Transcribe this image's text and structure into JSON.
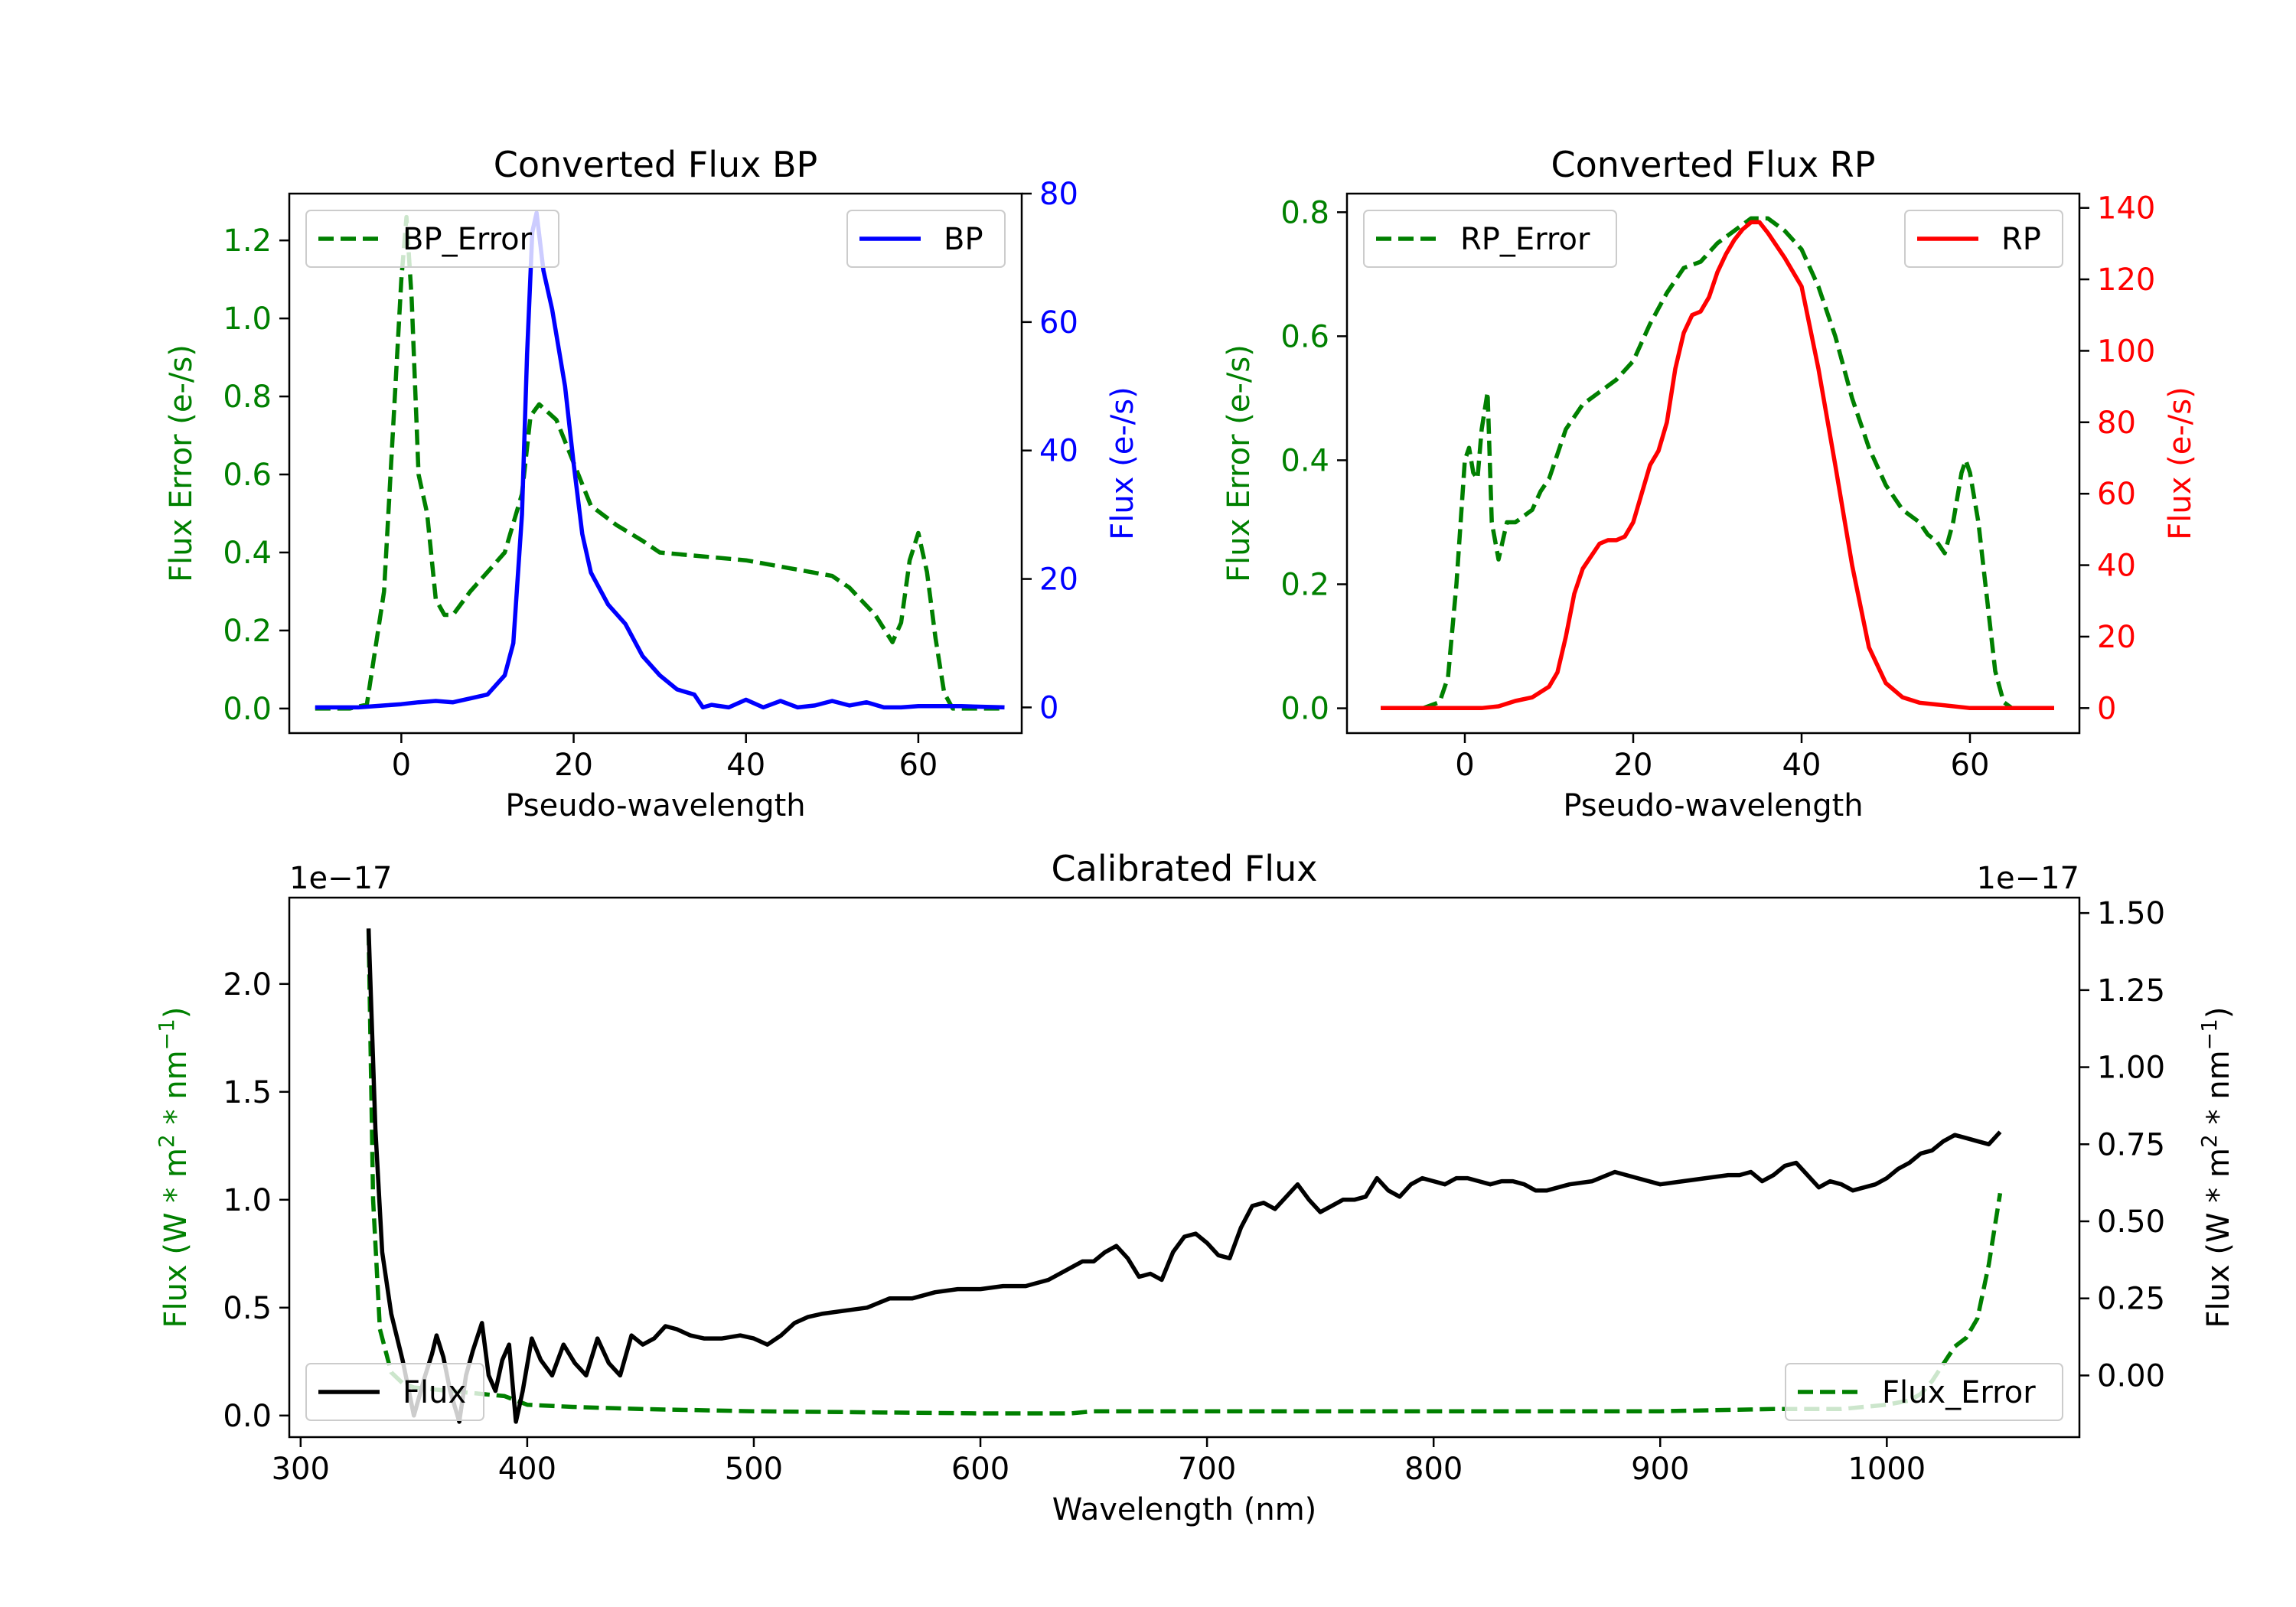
{
  "colors": {
    "green": "#008000",
    "blue": "#0000ff",
    "red": "#ff0000",
    "black": "#000000"
  },
  "chart_data": [
    {
      "type": "line",
      "title": "Converted Flux BP",
      "xlabel": "Pseudo-wavelength",
      "xlim": [
        -13,
        72
      ],
      "x_ticks": [
        0,
        20,
        40,
        60
      ],
      "x_tick_labels": [
        "0",
        "20",
        "40",
        "60"
      ],
      "left_axis": {
        "label": "Flux Error (e-/s)",
        "ylim": [
          -0.063,
          1.32
        ],
        "ticks": [
          0.0,
          0.2,
          0.4,
          0.6,
          0.8,
          1.0,
          1.2
        ],
        "tick_labels": [
          "0.0",
          "0.2",
          "0.4",
          "0.6",
          "0.8",
          "1.0",
          "1.2"
        ]
      },
      "right_axis": {
        "label": "Flux (e-/s)",
        "ylim": [
          -4,
          80
        ],
        "ticks": [
          0,
          20,
          40,
          60,
          80
        ],
        "tick_labels": [
          "0",
          "20",
          "40",
          "60",
          "80"
        ]
      },
      "series": [
        {
          "name": "BP_Error",
          "axis": "left",
          "style": "dashed",
          "color": "#008000",
          "x": [
            -10,
            -6,
            -4,
            -2,
            -1,
            0,
            0.6,
            1.2,
            2,
            3,
            4,
            5,
            6,
            8,
            10,
            12,
            14,
            15,
            16,
            18,
            20,
            22,
            25,
            28,
            30,
            35,
            40,
            45,
            50,
            52,
            55,
            57,
            58,
            59,
            60,
            61,
            62,
            63,
            64,
            66,
            70
          ],
          "values": [
            0.0,
            0.0,
            0.01,
            0.3,
            0.7,
            1.1,
            1.26,
            1.05,
            0.6,
            0.5,
            0.28,
            0.24,
            0.24,
            0.3,
            0.35,
            0.4,
            0.55,
            0.75,
            0.78,
            0.74,
            0.63,
            0.52,
            0.47,
            0.43,
            0.4,
            0.39,
            0.38,
            0.36,
            0.34,
            0.31,
            0.24,
            0.17,
            0.22,
            0.38,
            0.45,
            0.35,
            0.18,
            0.04,
            0.0,
            0.0,
            0.0
          ]
        },
        {
          "name": "BP",
          "axis": "right",
          "style": "solid",
          "color": "#0000ff",
          "x": [
            -10,
            -5,
            -2,
            0,
            2,
            4,
            6,
            8,
            10,
            12,
            13,
            14,
            14.6,
            15.2,
            15.7,
            16.5,
            17.5,
            19,
            20,
            21,
            22,
            24,
            26,
            28,
            30,
            32,
            34,
            35,
            36,
            38,
            40,
            42,
            44,
            46,
            48,
            50,
            52,
            54,
            56,
            58,
            60,
            65,
            70
          ],
          "values": [
            0,
            0,
            0.3,
            0.5,
            0.8,
            1.0,
            0.8,
            1.4,
            2,
            5,
            10,
            30,
            55,
            74,
            77,
            68,
            62,
            50,
            38,
            27,
            21,
            16,
            13,
            8,
            5,
            2.8,
            2.0,
            0,
            0.4,
            0,
            1.2,
            0,
            1.0,
            0,
            0.3,
            1,
            0.3,
            0.8,
            0,
            0,
            0.2,
            0.2,
            0
          ]
        }
      ],
      "legends": [
        {
          "entry": "BP_Error",
          "placement": "upper-left"
        },
        {
          "entry": "BP",
          "placement": "upper-right"
        }
      ]
    },
    {
      "type": "line",
      "title": "Converted Flux RP",
      "xlabel": "Pseudo-wavelength",
      "xlim": [
        -14,
        73
      ],
      "x_ticks": [
        0,
        20,
        40,
        60
      ],
      "x_tick_labels": [
        "0",
        "20",
        "40",
        "60"
      ],
      "left_axis": {
        "label": "Flux Error (e-/s)",
        "ylim": [
          -0.04,
          0.83
        ],
        "ticks": [
          0.0,
          0.2,
          0.4,
          0.6,
          0.8
        ],
        "tick_labels": [
          "0.0",
          "0.2",
          "0.4",
          "0.6",
          "0.8"
        ]
      },
      "right_axis": {
        "label": "Flux (e-/s)",
        "ylim": [
          -7,
          144
        ],
        "ticks": [
          0,
          20,
          40,
          60,
          80,
          100,
          120,
          140
        ],
        "tick_labels": [
          "0",
          "20",
          "40",
          "60",
          "80",
          "100",
          "120",
          "140"
        ]
      },
      "series": [
        {
          "name": "RP_Error",
          "axis": "left",
          "style": "dashed",
          "color": "#008000",
          "x": [
            -5,
            -3,
            -2,
            -1,
            0,
            0.5,
            1,
            1.5,
            2,
            2.7,
            3.2,
            4,
            5,
            6,
            7,
            8,
            9,
            10,
            12,
            14,
            16,
            18,
            20,
            22,
            24,
            26,
            28,
            30,
            32,
            34,
            36,
            38,
            40,
            42,
            44,
            46,
            48,
            50,
            52,
            54,
            55,
            56,
            57,
            58,
            59,
            59.5,
            60,
            61,
            62,
            63,
            64,
            65
          ],
          "values": [
            0.0,
            0.01,
            0.05,
            0.2,
            0.4,
            0.42,
            0.38,
            0.37,
            0.45,
            0.51,
            0.3,
            0.24,
            0.3,
            0.3,
            0.31,
            0.32,
            0.35,
            0.37,
            0.45,
            0.49,
            0.51,
            0.53,
            0.56,
            0.62,
            0.67,
            0.71,
            0.72,
            0.75,
            0.77,
            0.79,
            0.79,
            0.77,
            0.74,
            0.68,
            0.6,
            0.5,
            0.42,
            0.36,
            0.32,
            0.3,
            0.28,
            0.27,
            0.25,
            0.3,
            0.38,
            0.4,
            0.38,
            0.3,
            0.18,
            0.06,
            0.01,
            0.0
          ]
        },
        {
          "name": "RP",
          "axis": "right",
          "style": "solid",
          "color": "#ff0000",
          "x": [
            -10,
            0,
            2,
            4,
            6,
            8,
            10,
            11,
            12,
            13,
            14,
            16,
            17,
            18,
            19,
            20,
            21,
            22,
            23,
            24,
            25,
            26,
            27,
            28,
            29,
            30,
            31,
            32,
            33,
            34,
            35,
            36,
            38,
            40,
            42,
            44,
            46,
            48,
            50,
            52,
            54,
            56,
            60,
            65,
            70
          ],
          "values": [
            0,
            0,
            0,
            0.5,
            2,
            3,
            6,
            10,
            20,
            32,
            39,
            46,
            47,
            47,
            48,
            52,
            60,
            68,
            72,
            80,
            95,
            105,
            110,
            111,
            115,
            122,
            127,
            131,
            134,
            136,
            136,
            133,
            126,
            118,
            95,
            68,
            40,
            17,
            7,
            3,
            1.5,
            1,
            0,
            0,
            0
          ]
        }
      ],
      "legends": [
        {
          "entry": "RP_Error",
          "placement": "upper-left"
        },
        {
          "entry": "RP",
          "placement": "upper-right"
        }
      ]
    },
    {
      "type": "line",
      "title": "Calibrated Flux",
      "xlabel": "Wavelength (nm)",
      "xlim": [
        295,
        1085
      ],
      "x_ticks": [
        300,
        400,
        500,
        600,
        700,
        800,
        900,
        1000
      ],
      "x_tick_labels": [
        "300",
        "400",
        "500",
        "600",
        "700",
        "800",
        "900",
        "1000"
      ],
      "left_axis": {
        "label_parts": [
          "Flux (W * m",
          "2",
          " * nm",
          "−1",
          ")"
        ],
        "offset_label": "1e−17",
        "ylim": [
          -0.1,
          2.4
        ],
        "ticks": [
          0.0,
          0.5,
          1.0,
          1.5,
          2.0
        ],
        "tick_labels": [
          "0.0",
          "0.5",
          "1.0",
          "1.5",
          "2.0"
        ]
      },
      "right_axis": {
        "label_parts": [
          "Flux (W * m",
          "2",
          " * nm",
          "−1",
          ")"
        ],
        "offset_label": "1e−17",
        "ylim": [
          -0.2,
          1.55
        ],
        "ticks": [
          0.0,
          0.25,
          0.5,
          0.75,
          1.0,
          1.25,
          1.5
        ],
        "tick_labels": [
          "0.00",
          "0.25",
          "0.50",
          "0.75",
          "1.00",
          "1.25",
          "1.50"
        ]
      },
      "series": [
        {
          "name": "Flux",
          "axis": "right",
          "style": "solid",
          "color": "#000000",
          "x": [
            330,
            333,
            336,
            340,
            345,
            350,
            355,
            358,
            360,
            363,
            366,
            370,
            373,
            376,
            380,
            383,
            386,
            389,
            392,
            395,
            398,
            402,
            406,
            411,
            416,
            421,
            426,
            431,
            436,
            441,
            446,
            451,
            456,
            461,
            466,
            472,
            478,
            486,
            494,
            500,
            506,
            512,
            518,
            524,
            530,
            540,
            550,
            560,
            570,
            580,
            590,
            600,
            610,
            620,
            630,
            640,
            645,
            650,
            655,
            660,
            665,
            670,
            675,
            680,
            685,
            690,
            695,
            700,
            705,
            710,
            715,
            720,
            725,
            730,
            735,
            740,
            745,
            750,
            755,
            760,
            765,
            770,
            775,
            780,
            785,
            790,
            795,
            800,
            805,
            810,
            815,
            820,
            825,
            830,
            835,
            840,
            845,
            850,
            860,
            870,
            880,
            890,
            900,
            910,
            920,
            930,
            935,
            940,
            945,
            950,
            955,
            960,
            965,
            970,
            975,
            980,
            985,
            990,
            995,
            1000,
            1005,
            1010,
            1015,
            1020,
            1025,
            1030,
            1035,
            1040,
            1045,
            1050
          ],
          "values": [
            1.45,
            0.8,
            0.4,
            0.2,
            0.05,
            -0.13,
            0.0,
            0.07,
            0.13,
            0.06,
            -0.05,
            -0.15,
            0.0,
            0.08,
            0.17,
            0.0,
            -0.05,
            0.05,
            0.1,
            -0.15,
            -0.05,
            0.12,
            0.05,
            0.0,
            0.1,
            0.04,
            0.0,
            0.12,
            0.04,
            0.0,
            0.13,
            0.1,
            0.12,
            0.16,
            0.15,
            0.13,
            0.12,
            0.12,
            0.13,
            0.12,
            0.1,
            0.13,
            0.17,
            0.19,
            0.2,
            0.21,
            0.22,
            0.25,
            0.25,
            0.27,
            0.28,
            0.28,
            0.29,
            0.29,
            0.31,
            0.35,
            0.37,
            0.37,
            0.4,
            0.42,
            0.38,
            0.32,
            0.33,
            0.31,
            0.4,
            0.45,
            0.46,
            0.43,
            0.39,
            0.38,
            0.48,
            0.55,
            0.56,
            0.54,
            0.58,
            0.62,
            0.57,
            0.53,
            0.55,
            0.57,
            0.57,
            0.58,
            0.64,
            0.6,
            0.58,
            0.62,
            0.64,
            0.63,
            0.62,
            0.64,
            0.64,
            0.63,
            0.62,
            0.63,
            0.63,
            0.62,
            0.6,
            0.6,
            0.62,
            0.63,
            0.66,
            0.64,
            0.62,
            0.63,
            0.64,
            0.65,
            0.65,
            0.66,
            0.63,
            0.65,
            0.68,
            0.69,
            0.65,
            0.61,
            0.63,
            0.62,
            0.6,
            0.61,
            0.62,
            0.64,
            0.67,
            0.69,
            0.72,
            0.73,
            0.76,
            0.78,
            0.77,
            0.76,
            0.75,
            0.79
          ]
        },
        {
          "name": "Flux_Error",
          "axis": "left",
          "style": "dashed",
          "color": "#008000",
          "x": [
            330,
            332,
            335,
            340,
            345,
            350,
            360,
            370,
            380,
            390,
            400,
            420,
            450,
            500,
            600,
            640,
            650,
            700,
            800,
            900,
            950,
            980,
            1000,
            1010,
            1015,
            1020,
            1025,
            1030,
            1035,
            1040,
            1045,
            1050
          ],
          "values": [
            2.25,
            1.0,
            0.4,
            0.2,
            0.15,
            0.13,
            0.12,
            0.11,
            0.1,
            0.09,
            0.05,
            0.04,
            0.03,
            0.02,
            0.01,
            0.01,
            0.02,
            0.02,
            0.02,
            0.02,
            0.03,
            0.03,
            0.05,
            0.07,
            0.1,
            0.16,
            0.24,
            0.32,
            0.36,
            0.45,
            0.7,
            1.03
          ]
        }
      ],
      "legends": [
        {
          "entry": "Flux",
          "placement": "lower-left"
        },
        {
          "entry": "Flux_Error",
          "placement": "lower-right"
        }
      ]
    }
  ]
}
